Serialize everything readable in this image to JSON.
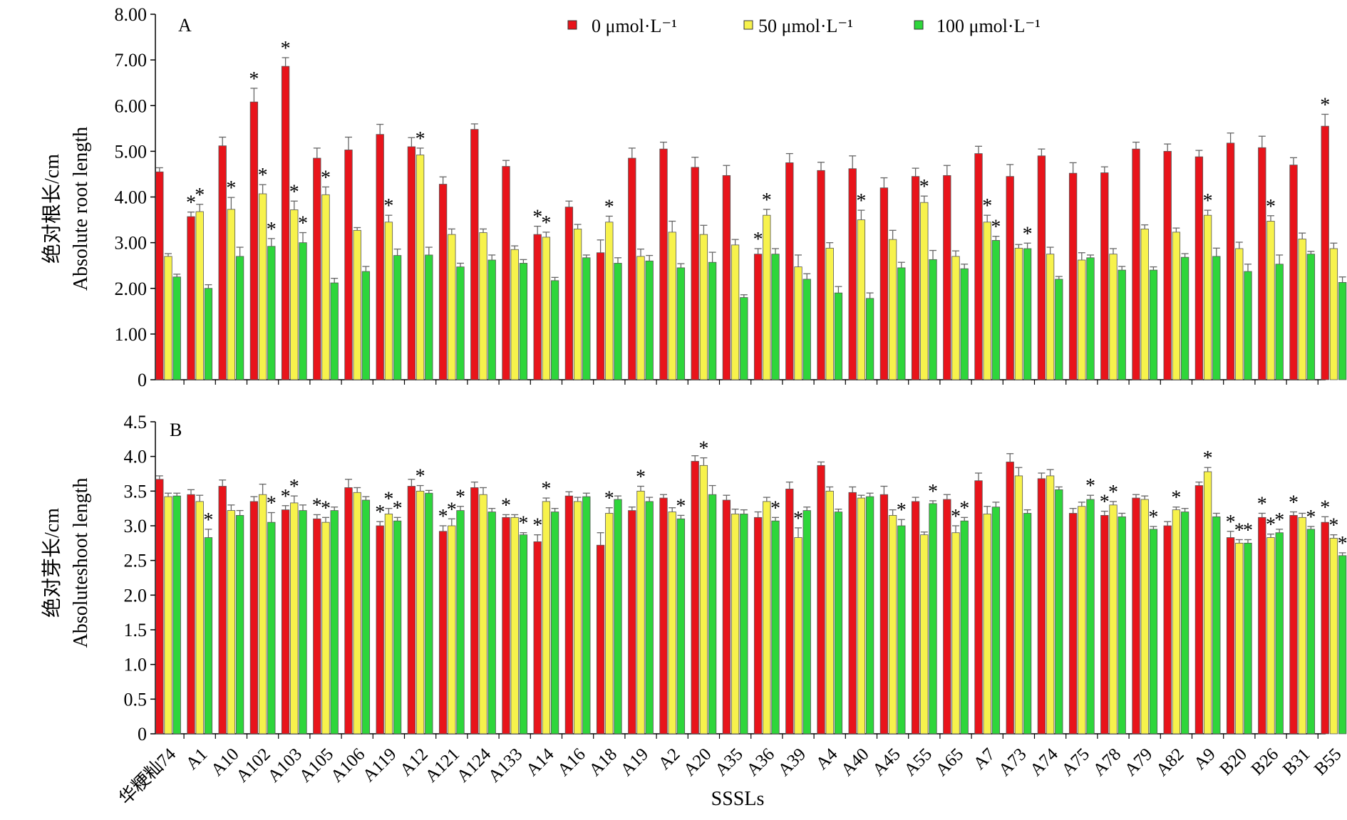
{
  "colors": {
    "c0": "#e8141b",
    "c50": "#f7f24c",
    "c100": "#2ed63b"
  },
  "legend": [
    "0 μmol·L⁻¹",
    "50 μmol·L⁻¹",
    "100 μmol·L⁻¹"
  ],
  "xlabel": "SSSLs",
  "categories": [
    "华粳籼74",
    "A1",
    "A10",
    "A102",
    "A103",
    "A105",
    "A106",
    "A119",
    "A12",
    "A121",
    "A124",
    "A133",
    "A14",
    "A16",
    "A18",
    "A19",
    "A2",
    "A20",
    "A35",
    "A36",
    "A39",
    "A4",
    "A40",
    "A45",
    "A55",
    "A65",
    "A7",
    "A73",
    "A74",
    "A75",
    "A78",
    "A79",
    "A82",
    "A9",
    "B20",
    "B26",
    "B31",
    "B55"
  ],
  "chart_data": [
    {
      "type": "bar",
      "panel_label": "A",
      "ylabel_cn": "绝对根长/cm",
      "ylabel_en": "Absolute root length",
      "ylim": [
        0,
        8
      ],
      "yticks": [
        "0",
        "1.00",
        "2.00",
        "3.00",
        "4.00",
        "5.00",
        "6.00",
        "7.00",
        "8.00"
      ],
      "series": [
        {
          "name": "0 μmol·L⁻¹",
          "values": [
            4.55,
            3.57,
            5.12,
            6.08,
            6.86,
            4.85,
            5.03,
            5.37,
            5.1,
            4.28,
            5.48,
            4.67,
            3.18,
            3.78,
            2.78,
            4.85,
            5.05,
            4.65,
            4.47,
            2.75,
            4.75,
            4.58,
            4.62,
            4.2,
            4.45,
            4.47,
            4.95,
            4.45,
            4.9,
            4.52,
            4.53,
            5.05,
            5.0,
            4.88,
            5.18,
            5.08,
            4.7,
            5.55
          ],
          "errors": [
            0.09,
            0.1,
            0.19,
            0.3,
            0.19,
            0.22,
            0.28,
            0.22,
            0.2,
            0.16,
            0.12,
            0.13,
            0.18,
            0.13,
            0.28,
            0.22,
            0.15,
            0.22,
            0.22,
            0.12,
            0.2,
            0.18,
            0.28,
            0.22,
            0.18,
            0.22,
            0.16,
            0.26,
            0.15,
            0.23,
            0.13,
            0.15,
            0.16,
            0.14,
            0.22,
            0.25,
            0.16,
            0.26
          ],
          "sig": [
            false,
            true,
            false,
            true,
            true,
            false,
            false,
            false,
            false,
            false,
            false,
            false,
            true,
            false,
            false,
            false,
            false,
            false,
            false,
            true,
            false,
            false,
            false,
            false,
            false,
            false,
            false,
            false,
            false,
            false,
            false,
            false,
            false,
            false,
            false,
            false,
            false,
            true
          ]
        },
        {
          "name": "50 μmol·L⁻¹",
          "values": [
            2.7,
            3.68,
            3.73,
            4.07,
            3.72,
            4.05,
            3.27,
            3.45,
            4.92,
            3.18,
            3.22,
            2.85,
            3.12,
            3.3,
            3.45,
            2.7,
            3.23,
            3.18,
            2.95,
            3.6,
            2.47,
            2.88,
            3.5,
            3.07,
            3.88,
            2.7,
            3.45,
            2.88,
            2.75,
            2.62,
            2.75,
            3.3,
            3.23,
            3.6,
            2.87,
            3.47,
            3.08,
            2.87
          ],
          "errors": [
            0.06,
            0.16,
            0.26,
            0.2,
            0.19,
            0.17,
            0.06,
            0.15,
            0.15,
            0.12,
            0.08,
            0.08,
            0.11,
            0.1,
            0.13,
            0.16,
            0.24,
            0.2,
            0.12,
            0.13,
            0.26,
            0.12,
            0.21,
            0.2,
            0.14,
            0.12,
            0.15,
            0.08,
            0.15,
            0.16,
            0.12,
            0.09,
            0.09,
            0.11,
            0.14,
            0.12,
            0.13,
            0.12
          ],
          "sig": [
            false,
            true,
            true,
            true,
            true,
            true,
            false,
            true,
            true,
            false,
            false,
            false,
            true,
            false,
            true,
            false,
            false,
            false,
            false,
            true,
            false,
            false,
            true,
            false,
            true,
            false,
            true,
            false,
            false,
            false,
            false,
            false,
            false,
            true,
            false,
            true,
            false,
            false
          ]
        },
        {
          "name": "100 μmol·L⁻¹",
          "values": [
            2.25,
            2.0,
            2.7,
            2.92,
            3.0,
            2.12,
            2.37,
            2.72,
            2.73,
            2.47,
            2.62,
            2.55,
            2.17,
            2.67,
            2.55,
            2.6,
            2.45,
            2.57,
            1.8,
            2.75,
            2.2,
            1.9,
            1.78,
            2.45,
            2.63,
            2.43,
            3.05,
            2.87,
            2.2,
            2.67,
            2.4,
            2.4,
            2.68,
            2.7,
            2.37,
            2.53,
            2.75,
            2.13
          ],
          "errors": [
            0.06,
            0.08,
            0.2,
            0.17,
            0.22,
            0.1,
            0.11,
            0.14,
            0.17,
            0.08,
            0.11,
            0.08,
            0.07,
            0.06,
            0.12,
            0.12,
            0.09,
            0.22,
            0.06,
            0.12,
            0.12,
            0.14,
            0.12,
            0.12,
            0.2,
            0.1,
            0.09,
            0.12,
            0.06,
            0.06,
            0.08,
            0.07,
            0.08,
            0.18,
            0.16,
            0.2,
            0.06,
            0.12
          ],
          "sig": [
            false,
            false,
            false,
            true,
            true,
            false,
            false,
            false,
            false,
            false,
            false,
            false,
            false,
            false,
            false,
            false,
            false,
            false,
            false,
            false,
            false,
            false,
            false,
            false,
            false,
            false,
            true,
            true,
            false,
            false,
            false,
            false,
            false,
            false,
            false,
            false,
            false,
            false
          ]
        }
      ]
    },
    {
      "type": "bar",
      "panel_label": "B",
      "ylabel_cn": "绝对芽长/cm",
      "ylabel_en": "Absoluteshoot length",
      "ylim": [
        0,
        4.5
      ],
      "yticks": [
        "0",
        "0.5",
        "1.0",
        "1.5",
        "2.0",
        "2.5",
        "3.0",
        "3.5",
        "4.0",
        "4.5"
      ],
      "series": [
        {
          "name": "0 μmol·L⁻¹",
          "values": [
            3.67,
            3.45,
            3.57,
            3.35,
            3.23,
            3.1,
            3.55,
            3.0,
            3.57,
            2.92,
            3.55,
            3.12,
            2.77,
            3.43,
            2.72,
            3.22,
            3.4,
            3.93,
            3.37,
            3.12,
            3.53,
            3.87,
            3.48,
            3.45,
            3.35,
            3.38,
            3.65,
            3.92,
            3.68,
            3.18,
            3.15,
            3.4,
            3.0,
            3.58,
            2.83,
            3.12,
            3.15,
            3.05
          ],
          "errors": [
            0.05,
            0.07,
            0.09,
            0.07,
            0.06,
            0.06,
            0.12,
            0.06,
            0.1,
            0.08,
            0.08,
            0.04,
            0.1,
            0.06,
            0.18,
            0.05,
            0.05,
            0.08,
            0.07,
            0.08,
            0.1,
            0.05,
            0.08,
            0.12,
            0.06,
            0.07,
            0.11,
            0.12,
            0.08,
            0.07,
            0.06,
            0.05,
            0.06,
            0.05,
            0.09,
            0.06,
            0.05,
            0.08
          ],
          "sig": [
            false,
            false,
            false,
            false,
            true,
            true,
            false,
            true,
            false,
            true,
            false,
            true,
            true,
            false,
            false,
            false,
            false,
            false,
            false,
            false,
            false,
            false,
            false,
            false,
            false,
            false,
            false,
            false,
            false,
            false,
            true,
            false,
            false,
            false,
            true,
            true,
            true,
            true
          ]
        },
        {
          "name": "50 μmol·L⁻¹",
          "values": [
            3.42,
            3.35,
            3.22,
            3.45,
            3.33,
            3.05,
            3.48,
            3.17,
            3.5,
            3.0,
            3.45,
            3.12,
            3.35,
            3.35,
            3.18,
            3.5,
            3.2,
            3.87,
            3.17,
            3.35,
            2.83,
            3.5,
            3.4,
            3.15,
            2.87,
            2.9,
            3.17,
            3.72,
            3.72,
            3.28,
            3.3,
            3.38,
            3.23,
            3.78,
            2.75,
            2.83,
            3.12,
            2.82
          ],
          "errors": [
            0.05,
            0.09,
            0.08,
            0.15,
            0.1,
            0.07,
            0.07,
            0.08,
            0.08,
            0.1,
            0.1,
            0.04,
            0.05,
            0.06,
            0.08,
            0.07,
            0.06,
            0.11,
            0.07,
            0.06,
            0.14,
            0.06,
            0.04,
            0.08,
            0.04,
            0.1,
            0.11,
            0.12,
            0.09,
            0.06,
            0.05,
            0.05,
            0.04,
            0.06,
            0.05,
            0.05,
            0.06,
            0.05
          ],
          "sig": [
            false,
            false,
            false,
            false,
            true,
            true,
            false,
            true,
            true,
            true,
            false,
            false,
            true,
            false,
            true,
            true,
            false,
            true,
            false,
            false,
            true,
            false,
            false,
            false,
            false,
            true,
            false,
            false,
            false,
            false,
            true,
            false,
            true,
            true,
            true,
            true,
            false,
            true
          ]
        },
        {
          "name": "100 μmol·L⁻¹",
          "values": [
            3.43,
            2.83,
            3.15,
            3.05,
            3.22,
            3.22,
            3.37,
            3.07,
            3.47,
            3.22,
            3.2,
            2.87,
            3.2,
            3.42,
            3.38,
            3.35,
            3.1,
            3.45,
            3.17,
            3.07,
            3.22,
            3.2,
            3.42,
            3.0,
            3.32,
            3.07,
            3.27,
            3.18,
            3.52,
            3.38,
            3.13,
            2.95,
            3.2,
            3.13,
            2.75,
            2.9,
            2.95,
            2.57
          ],
          "errors": [
            0.04,
            0.12,
            0.07,
            0.14,
            0.08,
            0.05,
            0.05,
            0.05,
            0.04,
            0.06,
            0.05,
            0.03,
            0.05,
            0.05,
            0.05,
            0.06,
            0.05,
            0.13,
            0.06,
            0.05,
            0.05,
            0.04,
            0.05,
            0.09,
            0.04,
            0.05,
            0.07,
            0.05,
            0.04,
            0.06,
            0.05,
            0.04,
            0.05,
            0.05,
            0.05,
            0.05,
            0.04,
            0.04
          ],
          "sig": [
            false,
            true,
            false,
            true,
            false,
            false,
            false,
            true,
            false,
            true,
            false,
            true,
            false,
            false,
            false,
            false,
            true,
            false,
            false,
            true,
            false,
            false,
            false,
            true,
            true,
            true,
            false,
            false,
            false,
            true,
            false,
            true,
            false,
            false,
            true,
            true,
            true,
            true
          ]
        }
      ]
    }
  ]
}
